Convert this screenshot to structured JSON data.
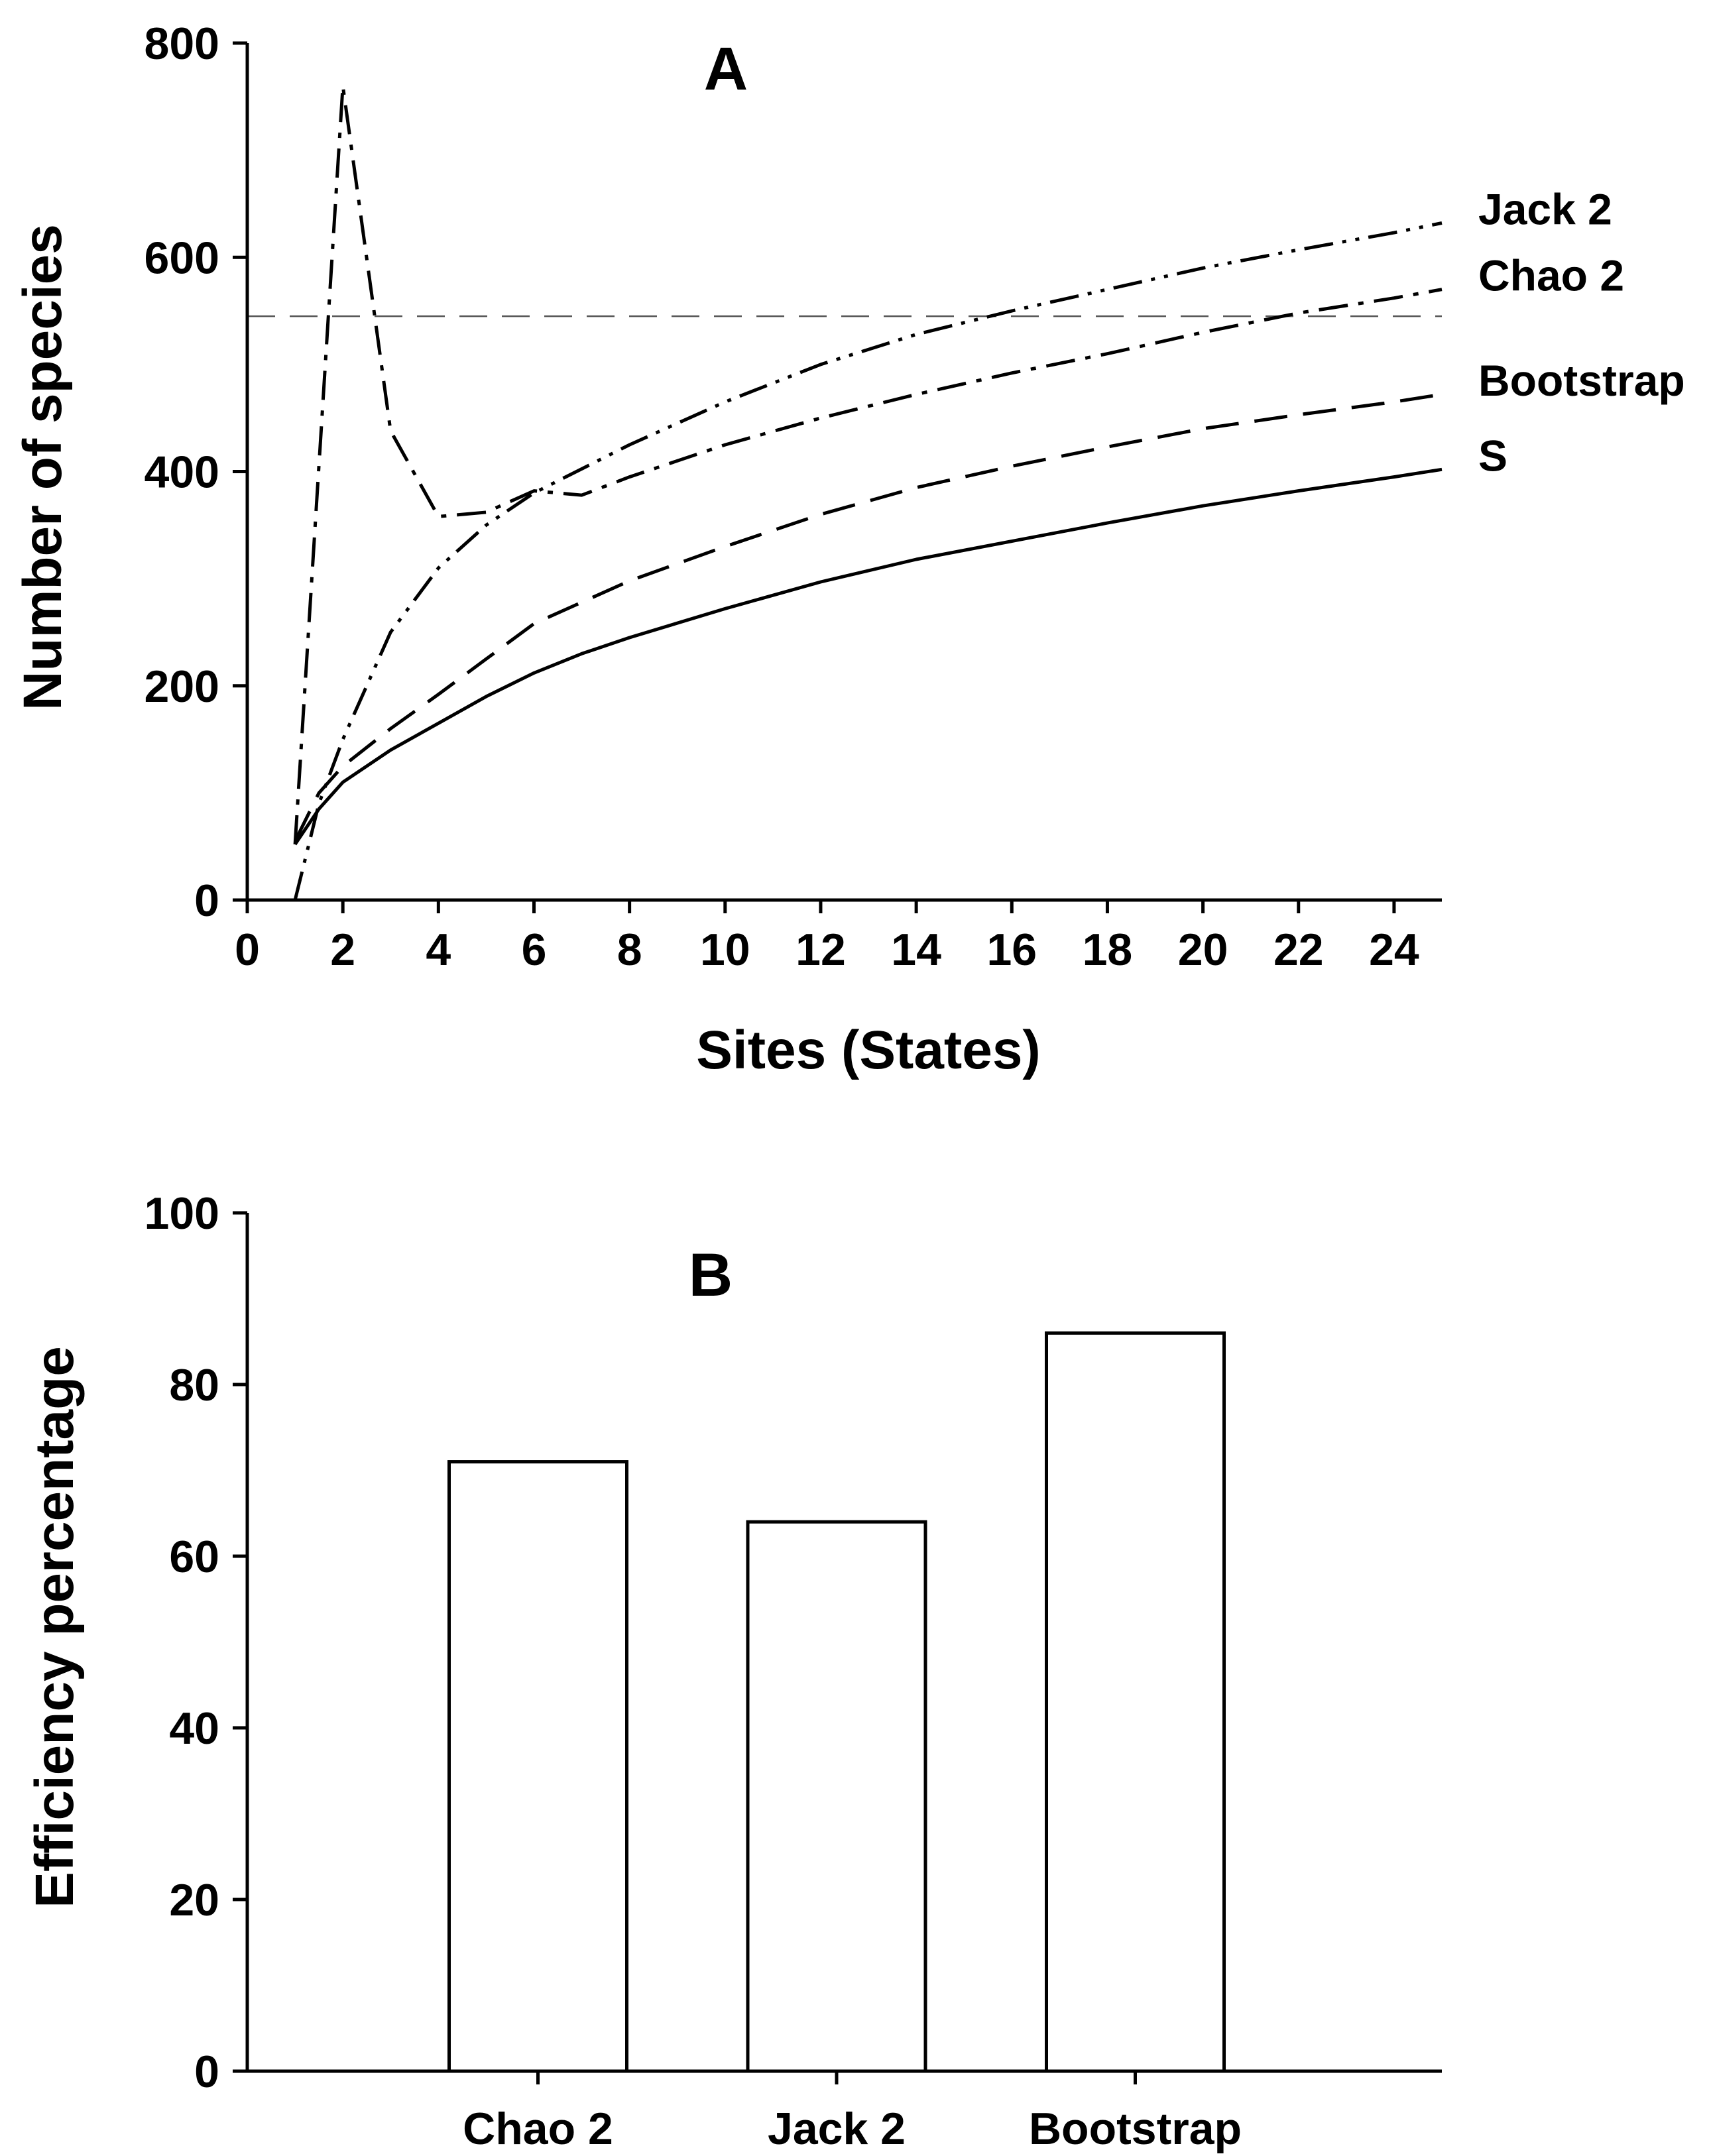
{
  "chart_data": [
    {
      "type": "line",
      "panel_label": "A",
      "xlabel": "Sites (States)",
      "ylabel": "Number of species",
      "xlim": [
        0,
        25
      ],
      "ylim": [
        0,
        800
      ],
      "xticks": [
        0,
        2,
        4,
        6,
        8,
        10,
        12,
        14,
        16,
        18,
        20,
        22,
        24
      ],
      "yticks": [
        0,
        200,
        400,
        600,
        800
      ],
      "reference_line": {
        "y": 545,
        "style": "dashed"
      },
      "series": [
        {
          "name": "Jack 2",
          "style": "dash-dot-dot",
          "x": [
            1,
            1.5,
            2,
            3,
            4,
            5,
            6,
            8,
            10,
            12,
            14,
            16,
            18,
            20,
            22,
            24,
            25
          ],
          "y": [
            0,
            90,
            150,
            250,
            310,
            350,
            380,
            425,
            465,
            500,
            528,
            550,
            570,
            590,
            607,
            623,
            632
          ]
        },
        {
          "name": "Chao 2",
          "style": "dash-dot",
          "x": [
            1,
            2,
            3,
            4,
            5,
            6,
            7,
            8,
            10,
            12,
            14,
            16,
            18,
            20,
            22,
            24,
            25
          ],
          "y": [
            52,
            760,
            438,
            358,
            362,
            382,
            378,
            395,
            425,
            450,
            472,
            492,
            510,
            530,
            548,
            562,
            570
          ]
        },
        {
          "name": "Bootstrap",
          "style": "long-dash",
          "x": [
            1,
            1.5,
            2,
            3,
            4,
            5,
            6,
            8,
            10,
            12,
            14,
            16,
            18,
            20,
            22,
            24,
            25
          ],
          "y": [
            55,
            100,
            125,
            160,
            192,
            225,
            258,
            298,
            330,
            360,
            385,
            405,
            423,
            440,
            453,
            465,
            472
          ]
        },
        {
          "name": "S",
          "style": "solid",
          "x": [
            1,
            1.5,
            2,
            3,
            4,
            5,
            6,
            7,
            8,
            10,
            12,
            14,
            16,
            18,
            20,
            22,
            24,
            25
          ],
          "y": [
            52,
            85,
            110,
            140,
            165,
            190,
            212,
            230,
            245,
            272,
            297,
            318,
            335,
            352,
            368,
            382,
            395,
            402
          ]
        }
      ]
    },
    {
      "type": "bar",
      "panel_label": "B",
      "xlabel": "",
      "ylabel": "Efficiency percentage",
      "ylim": [
        0,
        100
      ],
      "yticks": [
        0,
        20,
        40,
        60,
        80,
        100
      ],
      "categories": [
        "Chao 2",
        "Jack 2",
        "Bootstrap"
      ],
      "values": [
        71,
        64,
        86
      ]
    }
  ]
}
